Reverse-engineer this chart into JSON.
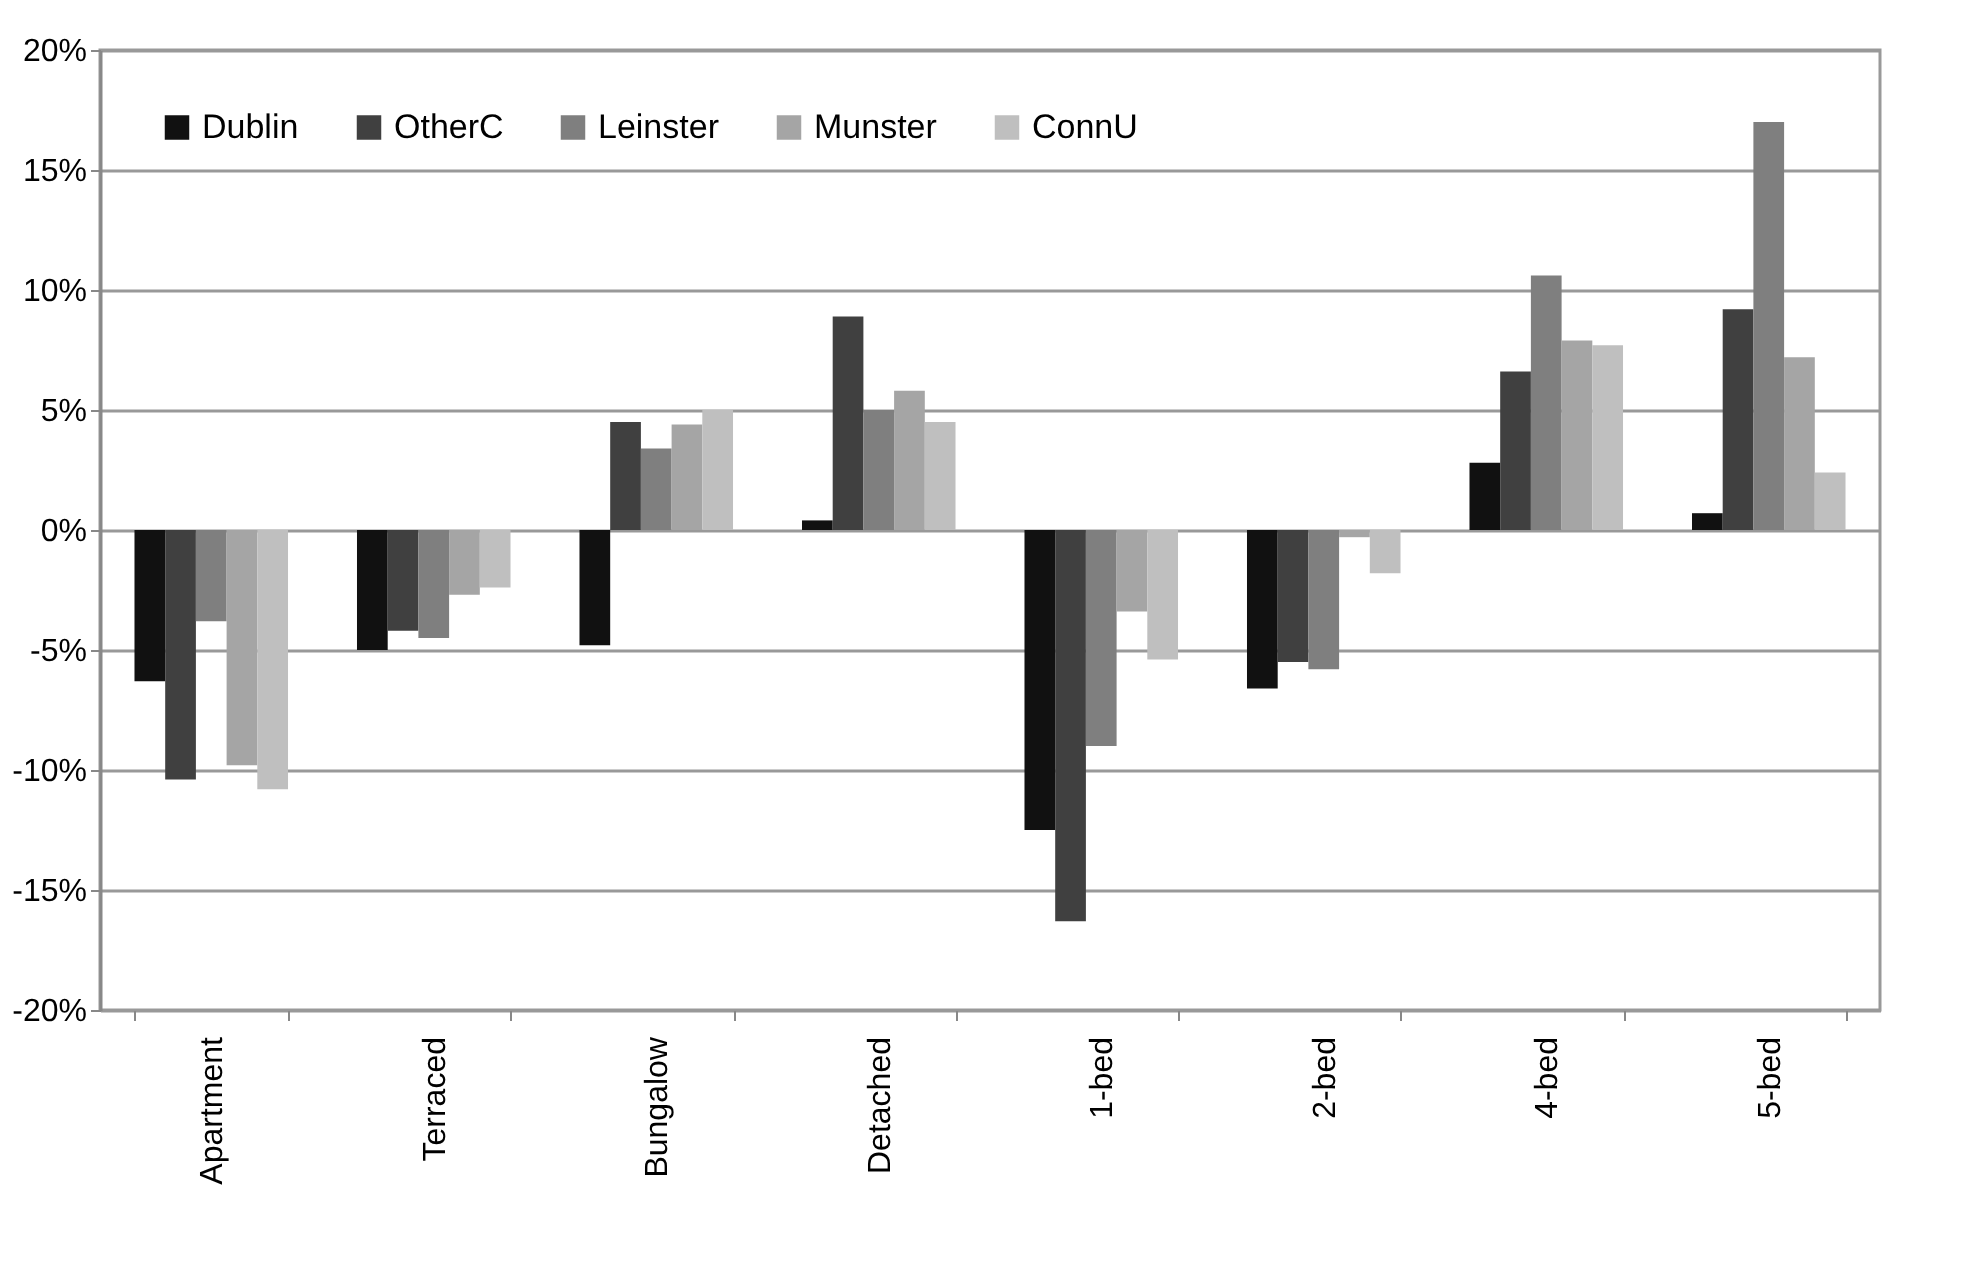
{
  "chart_data": {
    "type": "bar",
    "categories": [
      "Apartment",
      "Terraced",
      "Bungalow",
      "Detached",
      "1-bed",
      "2-bed",
      "4-bed",
      "5-bed"
    ],
    "series": [
      {
        "name": "Dublin",
        "color": "#111111",
        "values": [
          -6.3,
          -5.0,
          -4.8,
          0.4,
          -12.5,
          -6.6,
          2.8,
          0.7
        ]
      },
      {
        "name": "OtherC",
        "color": "#404040",
        "values": [
          -10.4,
          -4.2,
          4.5,
          8.9,
          -16.3,
          -5.5,
          6.6,
          9.2
        ]
      },
      {
        "name": "Leinster",
        "color": "#7f7f7f",
        "values": [
          -3.8,
          -4.5,
          3.4,
          5.0,
          -9.0,
          -5.8,
          10.6,
          17.0
        ]
      },
      {
        "name": "Munster",
        "color": "#a5a5a5",
        "values": [
          -9.8,
          -2.7,
          4.4,
          5.8,
          -3.4,
          -0.3,
          7.9,
          7.2
        ]
      },
      {
        "name": "ConnU",
        "color": "#bfbfbf",
        "values": [
          -10.8,
          -2.4,
          5.0,
          4.5,
          -5.4,
          -1.8,
          7.7,
          2.4
        ]
      }
    ],
    "ylim": [
      -20,
      20
    ],
    "yticks": [
      {
        "value": -20,
        "label": "-20%"
      },
      {
        "value": -15,
        "label": "-15%"
      },
      {
        "value": -10,
        "label": "-10%"
      },
      {
        "value": -5,
        "label": "-5%"
      },
      {
        "value": 0,
        "label": "0%"
      },
      {
        "value": 5,
        "label": "5%"
      },
      {
        "value": 10,
        "label": "10%"
      },
      {
        "value": 15,
        "label": "15%"
      },
      {
        "value": 20,
        "label": "20%"
      }
    ],
    "grid": "y",
    "legend": "top left"
  }
}
